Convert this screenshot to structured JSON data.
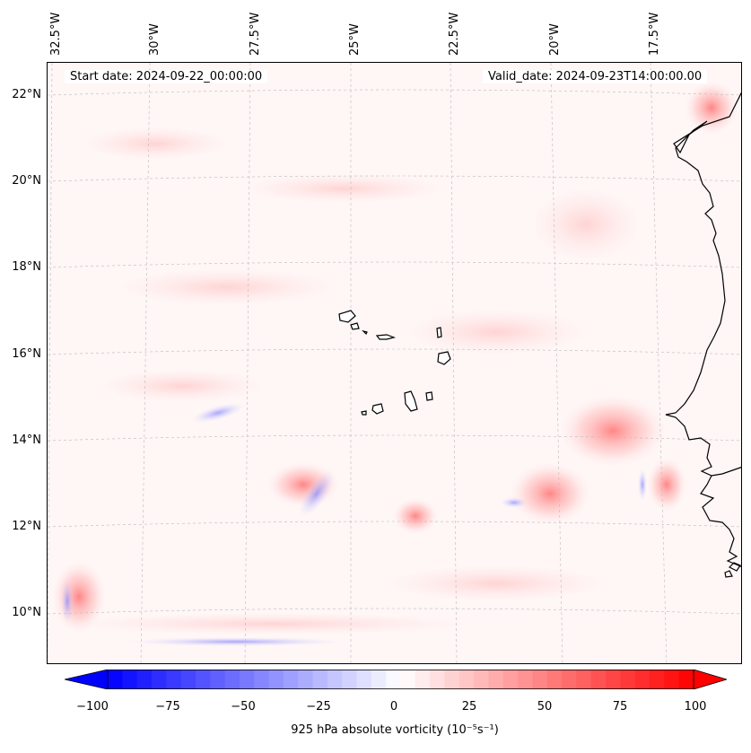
{
  "map": {
    "start_date": "Start date: 2024-09-22_00:00:00",
    "valid_date": "Valid_date: 2024-09-23T14:00:00.00",
    "lat_labels": [
      "22°N",
      "20°N",
      "18°N",
      "16°N",
      "14°N",
      "12°N",
      "10°N"
    ],
    "lon_labels": [
      "32.5°W",
      "30°W",
      "27.5°W",
      "25°W",
      "22.5°W",
      "20°W",
      "17.5°W"
    ],
    "field": "925 hPa absolute vorticity",
    "colors": {
      "coast": "#000000",
      "grid": "#bbbbbb",
      "positive": "#ff0000",
      "negative": "#0000ff"
    }
  },
  "colorbar": {
    "label": "925 hPa absolute vorticity (10⁻⁵s⁻¹)",
    "ticks": [
      "−100",
      "−75",
      "−50",
      "−25",
      "0",
      "25",
      "50",
      "75",
      "100"
    ],
    "vmin": -100,
    "vmax": 100,
    "levels": 40
  }
}
